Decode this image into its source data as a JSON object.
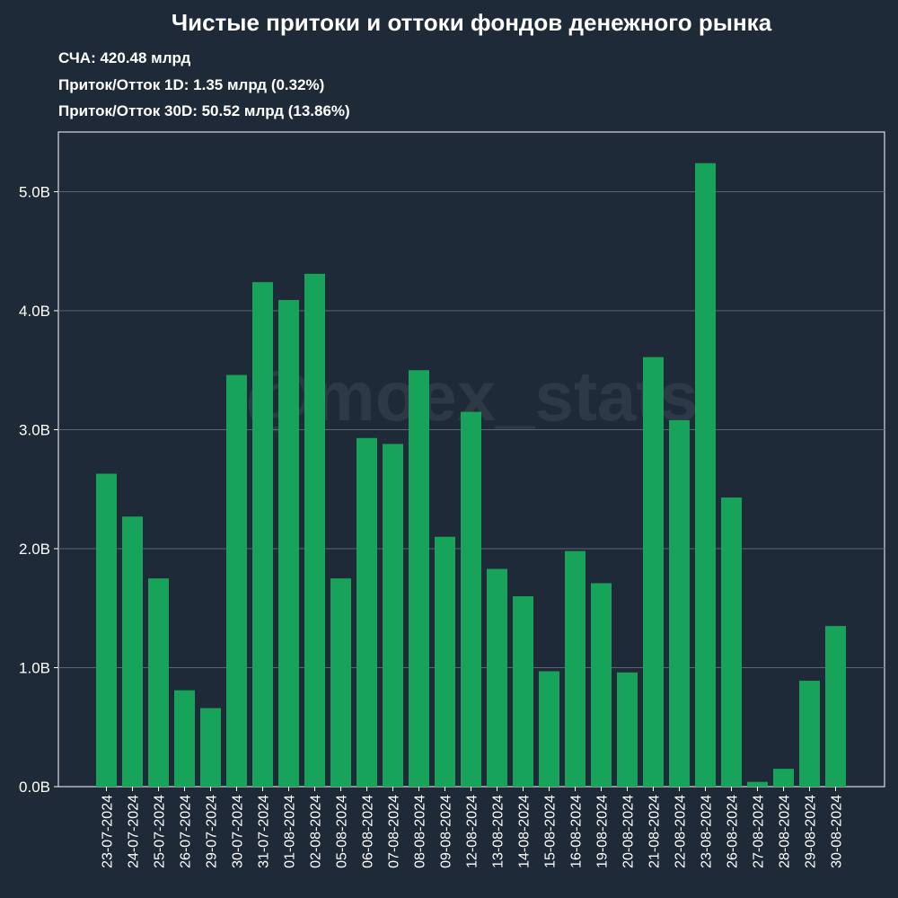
{
  "header": {
    "title": "Чистые притоки и оттоки фондов денежного рынка",
    "nav": "СЧА: 420.48 млрд",
    "flow_1d": "Приток/Отток 1D: 1.35 млрд (0.32%)",
    "flow_30d": "Приток/Отток 30D: 50.52 млрд (13.86%)"
  },
  "watermark": "@moex_stats",
  "colors": {
    "background": "#1f2a38",
    "bar": "#17a45a",
    "grid": "#5b6675",
    "text": "#ffffff"
  },
  "chart_data": {
    "type": "bar",
    "categories": [
      "23-07-2024",
      "24-07-2024",
      "25-07-2024",
      "26-07-2024",
      "29-07-2024",
      "30-07-2024",
      "31-07-2024",
      "01-08-2024",
      "02-08-2024",
      "05-08-2024",
      "06-08-2024",
      "07-08-2024",
      "08-08-2024",
      "09-08-2024",
      "12-08-2024",
      "13-08-2024",
      "14-08-2024",
      "15-08-2024",
      "16-08-2024",
      "19-08-2024",
      "20-08-2024",
      "21-08-2024",
      "22-08-2024",
      "23-08-2024",
      "26-08-2024",
      "27-08-2024",
      "28-08-2024",
      "29-08-2024",
      "30-08-2024"
    ],
    "values": [
      2.63,
      2.27,
      1.75,
      0.81,
      0.66,
      3.46,
      4.24,
      4.09,
      4.31,
      1.75,
      2.93,
      2.88,
      3.5,
      2.1,
      3.15,
      1.83,
      1.6,
      0.97,
      1.98,
      1.71,
      0.96,
      3.61,
      3.08,
      5.24,
      2.43,
      0.04,
      0.15,
      0.89,
      1.35
    ],
    "yticks": [
      0,
      1,
      2,
      3,
      4,
      5
    ],
    "ytick_labels": [
      "0.0B",
      "1.0B",
      "2.0B",
      "3.0B",
      "4.0B",
      "5.0B"
    ],
    "ylim": [
      0,
      5.5
    ],
    "grid": true,
    "title": "Чистые притоки и оттоки фондов денежного рынка"
  }
}
